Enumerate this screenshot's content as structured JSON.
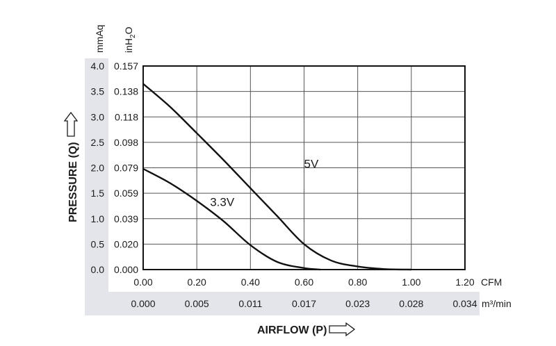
{
  "chart_data": {
    "type": "line",
    "title": "",
    "xlabel": "AIRFLOW (P)",
    "ylabel": "PRESSURE (Q)",
    "x_unit_primary": "CFM",
    "x_unit_secondary": "m³/min",
    "y_unit_primary": "mmAq",
    "y_unit_secondary_base": "inH",
    "y_unit_secondary_sub": "2",
    "y_unit_secondary_tail": "O",
    "xlim": [
      0,
      1.2
    ],
    "ylim": [
      0,
      4.0
    ],
    "grid": true,
    "x_ticks": [
      "0.00",
      "0.20",
      "0.40",
      "0.60",
      "0.80",
      "1.00",
      "1.20"
    ],
    "x_ticks_secondary": [
      "0.000",
      "0.005",
      "0.011",
      "0.017",
      "0.023",
      "0.028",
      "0.034"
    ],
    "y_ticks": [
      "0.0",
      "0.5",
      "1.0",
      "1.5",
      "2.0",
      "2.5",
      "3.0",
      "3.5",
      "4.0"
    ],
    "y_ticks_secondary": [
      "0.000",
      "0.020",
      "0.039",
      "0.059",
      "0.079",
      "0.098",
      "0.118",
      "0.138",
      "0.157"
    ],
    "series": [
      {
        "name": "5V",
        "x": [
          0.0,
          0.1,
          0.2,
          0.3,
          0.4,
          0.5,
          0.6,
          0.7,
          0.8,
          0.9,
          1.0
        ],
        "y": [
          3.65,
          3.2,
          2.68,
          2.15,
          1.6,
          1.05,
          0.5,
          0.18,
          0.06,
          0.01,
          0.0
        ]
      },
      {
        "name": "3.3V",
        "x": [
          0.0,
          0.1,
          0.2,
          0.3,
          0.4,
          0.5,
          0.6,
          0.66
        ],
        "y": [
          1.98,
          1.7,
          1.35,
          0.95,
          0.48,
          0.15,
          0.03,
          0.0
        ]
      }
    ]
  },
  "colors": {
    "panel": "#e4e5ea",
    "grid": "#555555",
    "curve": "#111111",
    "frame": "#111111"
  }
}
